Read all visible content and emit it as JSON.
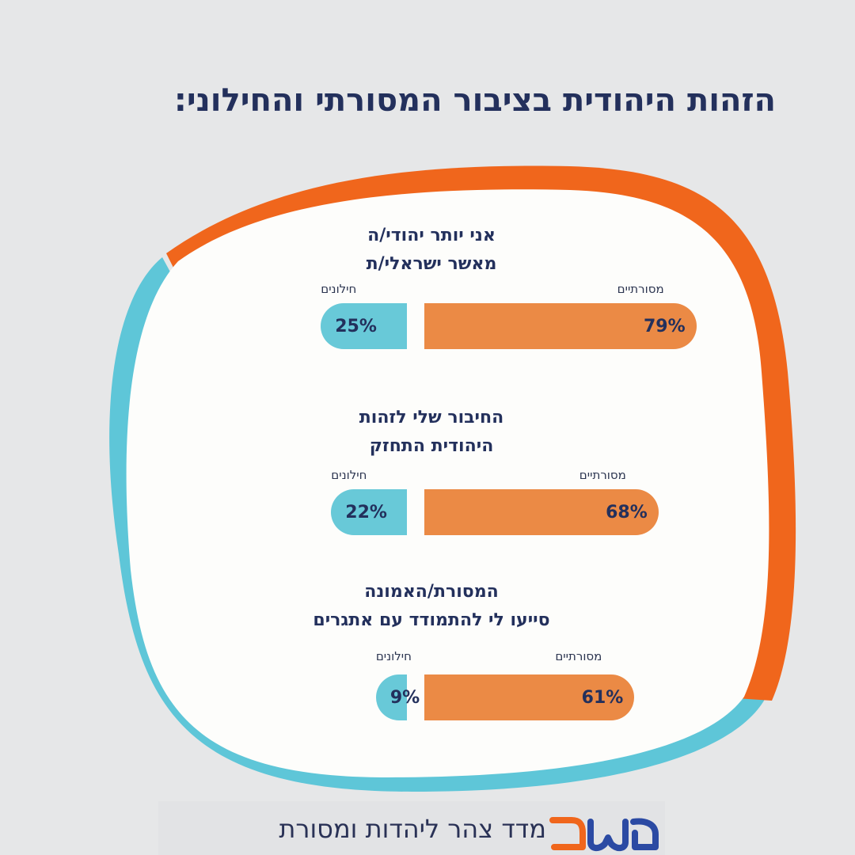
{
  "title": "הזהות היהודית בציבור המסורתי והחילוני:",
  "colors": {
    "traditional": "#eb8a45",
    "secular": "#68c9d8",
    "frame_orange": "#f0661c",
    "frame_blue": "#5ec6d8",
    "text": "#23305c"
  },
  "chart_data": {
    "type": "bar",
    "series": [
      {
        "name": "מסורתיים",
        "values": [
          79,
          68,
          61
        ]
      },
      {
        "name": "חילונים",
        "values": [
          25,
          22,
          9
        ]
      }
    ],
    "categories": [
      "אני יותר יהודי/ה מאשר ישראלי/ת",
      "החיבור שלי לזהות היהודית התחזק",
      "המסורת/האמונה סייעו לי להתמודד עם אתגרים"
    ],
    "questions": [
      {
        "line1": "אני יותר יהודי/ה",
        "line2": "מאשר ישראלי/ת",
        "trad_label": "מסורתיים",
        "sec_label": "חילונים",
        "trad_value": 79,
        "trad_text": "79%",
        "sec_value": 25,
        "sec_text": "25%"
      },
      {
        "line1": "החיבור שלי לזהות",
        "line2": "היהודית התחזק",
        "trad_label": "מסורתיים",
        "sec_label": "חילונים",
        "trad_value": 68,
        "trad_text": "68%",
        "sec_value": 22,
        "sec_text": "22%"
      },
      {
        "line1": "המסורת/האמונה",
        "line2": "סייעו לי להתמודד עם אתגרים",
        "trad_label": "מסורתיים",
        "sec_label": "חילונים",
        "trad_value": 61,
        "trad_text": "61%",
        "sec_value": 9,
        "sec_text": "9%"
      }
    ]
  },
  "footer": {
    "text": "מדד צהר ליהדות ומסורת",
    "logo_text": "משב"
  }
}
